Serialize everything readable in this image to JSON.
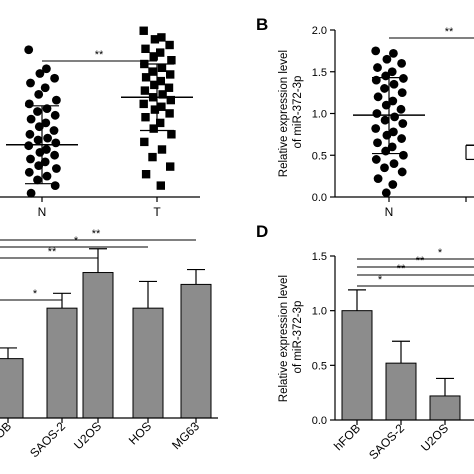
{
  "panels": [
    {
      "id": "A",
      "letter": ""
    },
    {
      "id": "B",
      "letter": "B"
    },
    {
      "id": "C",
      "letter": ""
    },
    {
      "id": "D",
      "letter": "D"
    }
  ],
  "chart_data": [
    {
      "panel": "A",
      "type": "scatter",
      "categories": [
        "N",
        "T"
      ],
      "markers": [
        "circle",
        "square"
      ],
      "ylim": [
        0,
        2.0
      ],
      "ylabel": "",
      "series": [
        {
          "category": "N",
          "values": [
            1.55,
            1.35,
            1.3,
            1.25,
            1.2,
            1.15,
            1.08,
            1.02,
            0.98,
            0.93,
            0.9,
            0.86,
            0.82,
            0.78,
            0.74,
            0.7,
            0.66,
            0.62,
            0.6,
            0.57,
            0.54,
            0.5,
            0.47,
            0.44,
            0.4,
            0.37,
            0.33,
            0.3,
            0.26,
            0.22,
            0.18,
            0.12,
            0.04
          ]
        },
        {
          "category": "T",
          "values": [
            1.75,
            1.68,
            1.66,
            1.6,
            1.56,
            1.52,
            1.48,
            1.44,
            1.4,
            1.36,
            1.32,
            1.29,
            1.26,
            1.22,
            1.18,
            1.15,
            1.12,
            1.08,
            1.05,
            1.02,
            0.98,
            0.95,
            0.92,
            0.88,
            0.84,
            0.78,
            0.72,
            0.66,
            0.58,
            0.5,
            0.42,
            0.32,
            0.24,
            0.12
          ]
        }
      ],
      "summary": [
        {
          "category": "N",
          "mean": 0.55,
          "sd_upper": 0.96,
          "sd_lower": 0.14
        },
        {
          "category": "T",
          "mean": 1.05,
          "sd_upper": 1.4,
          "sd_lower": 0.7
        }
      ],
      "significance": [
        {
          "label": "**",
          "from": "N",
          "to": "T"
        }
      ]
    },
    {
      "panel": "B",
      "type": "scatter",
      "categories": [
        "N",
        ""
      ],
      "ylim": [
        0,
        2.0
      ],
      "yticks": [
        "0.0",
        "0.5",
        "1.0",
        "1.5",
        "2.0"
      ],
      "ylabel": "Relative expression level of miR-372-3p",
      "series": [
        {
          "category": "N",
          "values": [
            1.75,
            1.72,
            1.65,
            1.6,
            1.55,
            1.5,
            1.45,
            1.42,
            1.4,
            1.35,
            1.3,
            1.25,
            1.2,
            1.15,
            1.1,
            1.05,
            1.0,
            0.96,
            0.92,
            0.88,
            0.82,
            0.78,
            0.74,
            0.7,
            0.65,
            0.6,
            0.55,
            0.5,
            0.45,
            0.4,
            0.35,
            0.3,
            0.22,
            0.15,
            0.05
          ]
        }
      ],
      "summary": [
        {
          "category": "N",
          "mean": 0.98,
          "sd_upper": 1.43,
          "sd_lower": 0.52
        }
      ],
      "significance": [
        {
          "label": "**"
        }
      ]
    },
    {
      "panel": "C",
      "type": "bar",
      "categories": [
        "hFOB",
        "SAOS-2",
        "U2OS",
        "HOS",
        "MG63"
      ],
      "category_labels": [
        "OB",
        "SAOS-2",
        "U2OS",
        "HOS",
        "MG63"
      ],
      "values": [
        1.0,
        1.85,
        2.45,
        1.85,
        2.25
      ],
      "errors": [
        0.18,
        0.25,
        0.4,
        0.45,
        0.25
      ],
      "ylim": [
        0,
        3.2
      ],
      "ylabel": "",
      "significance": [
        {
          "label": "*",
          "from": "hFOB",
          "to": "SAOS-2"
        },
        {
          "label": "**",
          "from": "hFOB",
          "to": "U2OS"
        },
        {
          "label": "*",
          "from": "hFOB",
          "to": "HOS"
        },
        {
          "label": "**",
          "from": "hFOB",
          "to": "MG63"
        }
      ]
    },
    {
      "panel": "D",
      "type": "bar",
      "categories": [
        "hFOB",
        "SAOS-2",
        "U2OS"
      ],
      "values": [
        1.0,
        0.52,
        0.22
      ],
      "errors": [
        0.19,
        0.2,
        0.16
      ],
      "ylim": [
        0,
        1.5
      ],
      "yticks": [
        "0.0",
        "0.5",
        "1.0",
        "1.5"
      ],
      "ylabel": "Relative expression level of miR-372-3p",
      "significance": [
        {
          "label": "*"
        },
        {
          "label": "**"
        },
        {
          "label": "**"
        },
        {
          "label": "*"
        }
      ]
    }
  ]
}
